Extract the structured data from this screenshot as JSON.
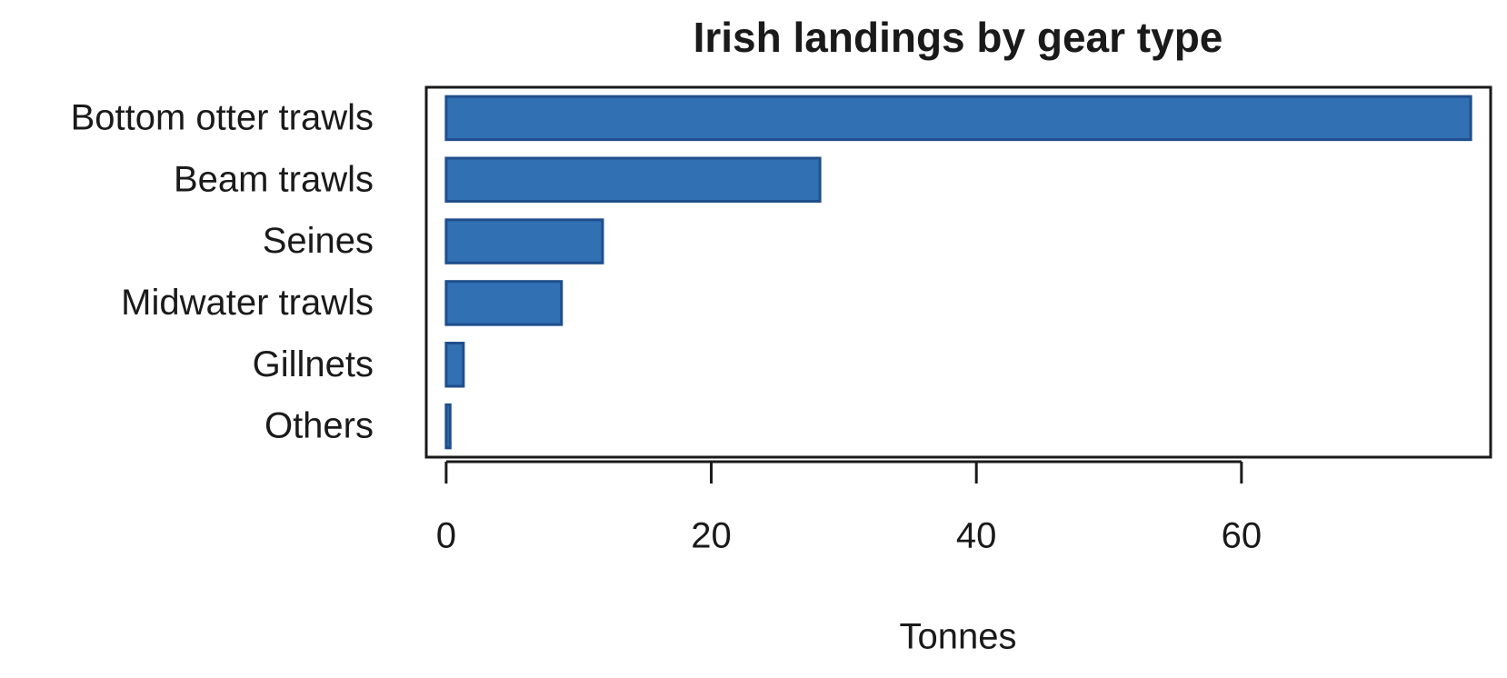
{
  "chart_data": {
    "type": "bar",
    "orientation": "horizontal",
    "title": "Irish landings by gear type",
    "x_label": "Tonnes",
    "categories": [
      "Bottom otter trawls",
      "Beam trawls",
      "Seines",
      "Midwater trawls",
      "Gillnets",
      "Others"
    ],
    "values": [
      77.3,
      28.2,
      11.8,
      8.7,
      1.3,
      0.3
    ],
    "color": "#3070b3",
    "xlim": [
      -1.5,
      78.8
    ],
    "xticks": [
      0,
      20,
      40,
      60
    ]
  }
}
